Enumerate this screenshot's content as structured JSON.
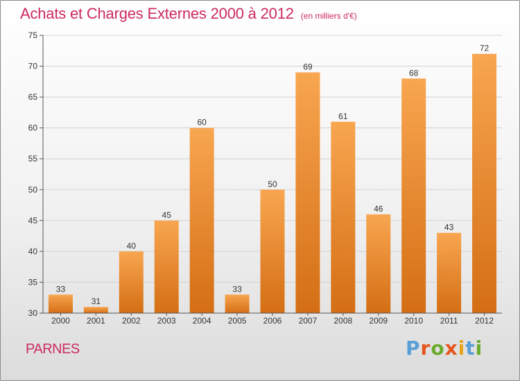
{
  "header": {
    "title": "Achats et Charges Externes 2000 à 2012",
    "unit": "(en milliers d'€)"
  },
  "footer": {
    "location": "PARNES",
    "brand": "Proxiti"
  },
  "colors": {
    "title": "#cc2b5e",
    "bar_top": "#f8a650",
    "bar_bottom": "#d46e14",
    "logo": [
      "#5a9fd6",
      "#e5541b",
      "#6aab2e",
      "#e5541b",
      "#e8a317",
      "#5a9fd6",
      "#6aab2e"
    ]
  },
  "chart_data": {
    "type": "bar",
    "categories": [
      "2000",
      "2001",
      "2002",
      "2003",
      "2004",
      "2005",
      "2006",
      "2007",
      "2008",
      "2009",
      "2010",
      "2011",
      "2012"
    ],
    "values": [
      33,
      31,
      40,
      45,
      60,
      33,
      50,
      69,
      61,
      46,
      68,
      43,
      72
    ],
    "ylim": [
      30,
      75
    ],
    "yticks": [
      30,
      35,
      40,
      45,
      50,
      55,
      60,
      65,
      70,
      75
    ],
    "grid": true,
    "title": "Achats et Charges Externes 2000 à 2012",
    "ylabel": "",
    "xlabel": ""
  }
}
